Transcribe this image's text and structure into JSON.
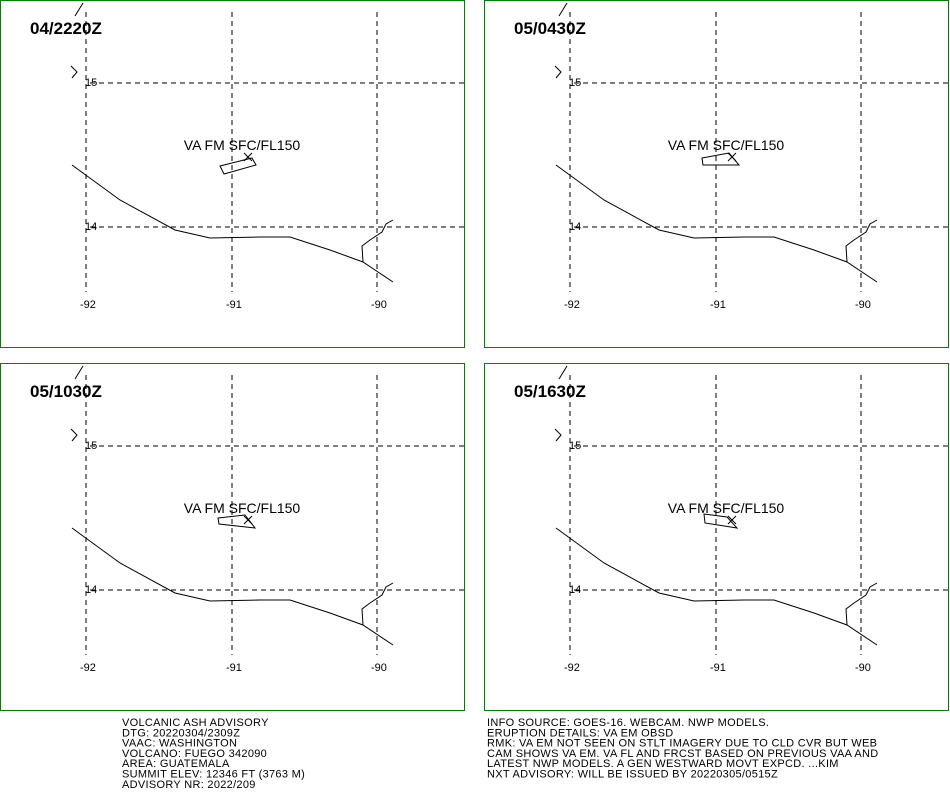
{
  "panels": [
    {
      "time": "04/2220Z",
      "label": "VA FM SFC/FL150"
    },
    {
      "time": "05/0430Z",
      "label": "VA FM SFC/FL150"
    },
    {
      "time": "05/1030Z",
      "label": "VA FM SFC/FL150"
    },
    {
      "time": "05/1630Z",
      "label": "VA FM SFC/FL150"
    }
  ],
  "lat_labels": [
    "15",
    "14"
  ],
  "lon_labels": [
    "-92",
    "-91",
    "-90"
  ],
  "advisory_left": [
    "VOLCANIC ASH ADVISORY",
    "DTG: 20220304/2309Z",
    "VAAC: WASHINGTON",
    "VOLCANO: FUEGO 342090",
    "AREA: GUATEMALA",
    "SUMMIT ELEV: 12346 FT (3763 M)",
    "ADVISORY NR: 2022/209"
  ],
  "advisory_right": [
    "INFO SOURCE: GOES-16. WEBCAM. NWP MODELS.",
    "ERUPTION DETAILS: VA EM OBSD",
    "RMK: VA EM NOT SEEN ON STLT IMAGERY DUE TO CLD CVR BUT WEB",
    "CAM SHOWS VA EM. VA FL AND FRCST BASED ON PREVIOUS VAA AND",
    "LATEST NWP MODELS. A GEN WESTWARD MOVT EXPCD. ...KIM",
    "NXT ADVISORY: WILL BE ISSUED BY 20220305/0515Z"
  ]
}
